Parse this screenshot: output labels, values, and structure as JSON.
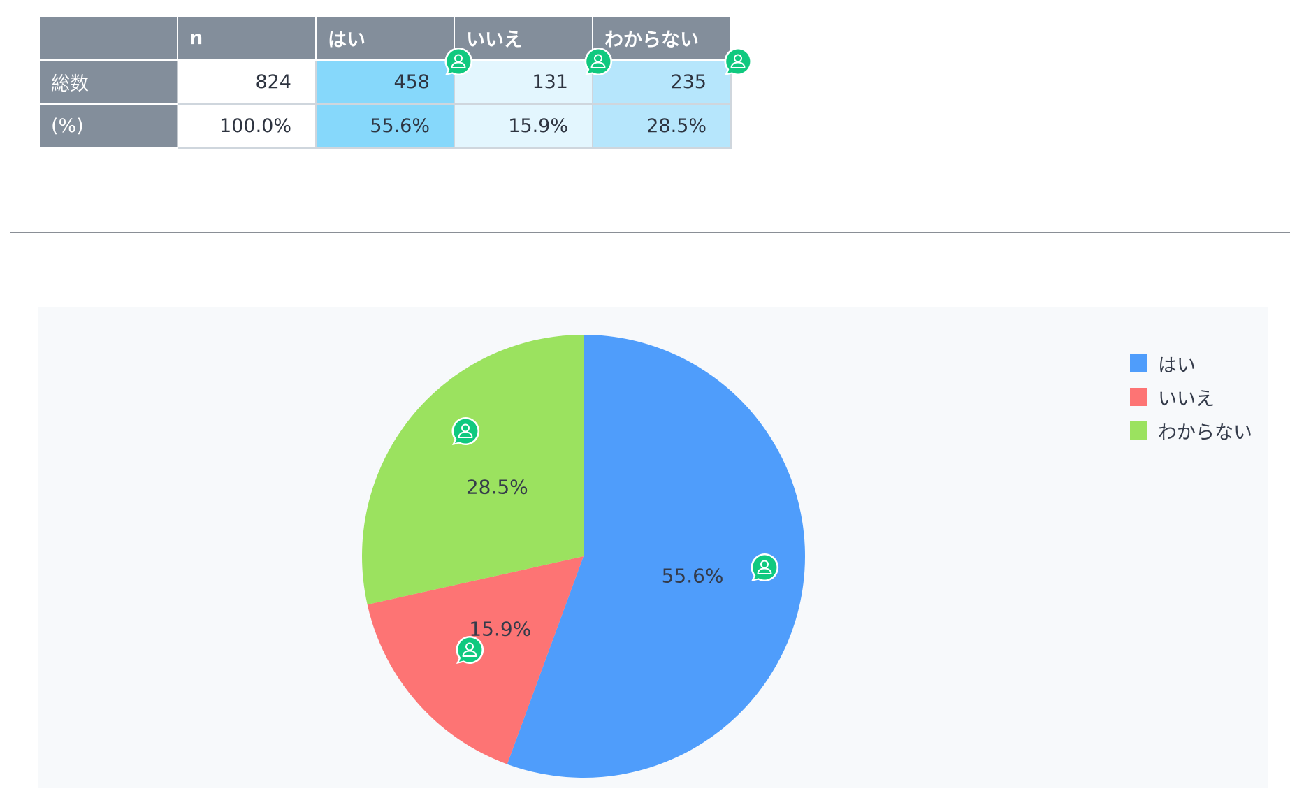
{
  "table": {
    "headers": [
      "",
      "n",
      "はい",
      "いいえ",
      "わからない"
    ],
    "rows": [
      {
        "label": "総数",
        "cells": [
          "824",
          "458",
          "131",
          "235"
        ]
      },
      {
        "label": "(%)",
        "cells": [
          "100.0%",
          "55.6%",
          "15.9%",
          "28.5%"
        ]
      }
    ]
  },
  "badge_icon": "comment-user-icon",
  "colors": {
    "header_bg": "#838e9b",
    "yes_cell": "#86d8fb",
    "no_cell": "#e3f6fe",
    "unknown_cell": "#b6e6fc",
    "badge": "#10c97f"
  },
  "chart_data": {
    "type": "pie",
    "title": "",
    "slices": [
      {
        "name": "はい",
        "value": 55.6,
        "label": "55.6%",
        "color": "#4f9dfb"
      },
      {
        "name": "いいえ",
        "value": 15.9,
        "label": "15.9%",
        "color": "#fd7474"
      },
      {
        "name": "わからない",
        "value": 28.5,
        "label": "28.5%",
        "color": "#9be25f"
      }
    ],
    "legend_position": "top-right",
    "start_angle": "12 o'clock",
    "direction": "clockwise"
  }
}
